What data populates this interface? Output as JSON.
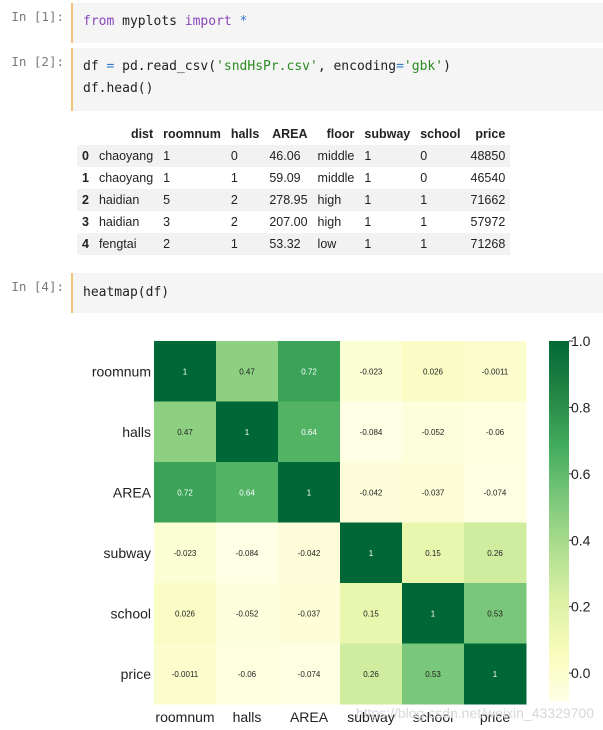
{
  "cells": [
    {
      "prompt": "In [1]:",
      "tokens": [
        {
          "t": "from",
          "c": "kw"
        },
        {
          "t": " myplots ",
          "c": ""
        },
        {
          "t": "import",
          "c": "kw"
        },
        {
          "t": " ",
          "c": ""
        },
        {
          "t": "*",
          "c": "op"
        }
      ]
    },
    {
      "prompt": "In [2]:",
      "tokens": [
        {
          "t": "df ",
          "c": ""
        },
        {
          "t": "=",
          "c": "op"
        },
        {
          "t": " pd.read_csv(",
          "c": ""
        },
        {
          "t": "'sndHsPr.csv'",
          "c": "str"
        },
        {
          "t": ", encoding",
          "c": ""
        },
        {
          "t": "=",
          "c": "op"
        },
        {
          "t": "'gbk'",
          "c": "str"
        },
        {
          "t": ")",
          "c": ""
        }
      ],
      "line2": "df.head()"
    },
    {
      "prompt": "In [4]:",
      "tokens": [
        {
          "t": "heatmap(df)",
          "c": ""
        }
      ]
    }
  ],
  "dataframe": {
    "columns": [
      "dist",
      "roomnum",
      "halls",
      "AREA",
      "floor",
      "subway",
      "school",
      "price"
    ],
    "rows": [
      {
        "index": "0",
        "values": [
          "chaoyang",
          "1",
          "0",
          "46.06",
          "middle",
          "1",
          "0",
          "48850"
        ]
      },
      {
        "index": "1",
        "values": [
          "chaoyang",
          "1",
          "1",
          "59.09",
          "middle",
          "1",
          "0",
          "46540"
        ]
      },
      {
        "index": "2",
        "values": [
          "haidian",
          "5",
          "2",
          "278.95",
          "high",
          "1",
          "1",
          "71662"
        ]
      },
      {
        "index": "3",
        "values": [
          "haidian",
          "3",
          "2",
          "207.00",
          "high",
          "1",
          "1",
          "57972"
        ]
      },
      {
        "index": "4",
        "values": [
          "fengtai",
          "2",
          "1",
          "53.32",
          "low",
          "1",
          "1",
          "71268"
        ]
      }
    ]
  },
  "chart_data": {
    "type": "heatmap",
    "x": [
      "roomnum",
      "halls",
      "AREA",
      "subway",
      "school",
      "price"
    ],
    "y": [
      "roomnum",
      "halls",
      "AREA",
      "subway",
      "school",
      "price"
    ],
    "values": [
      [
        1,
        0.47,
        0.72,
        -0.023,
        0.026,
        -0.0011
      ],
      [
        0.47,
        1,
        0.64,
        -0.084,
        -0.052,
        -0.06
      ],
      [
        0.72,
        0.64,
        1,
        -0.042,
        -0.037,
        -0.074
      ],
      [
        -0.023,
        -0.084,
        -0.042,
        1,
        0.15,
        0.26
      ],
      [
        0.026,
        -0.052,
        -0.037,
        0.15,
        1,
        0.53
      ],
      [
        -0.0011,
        -0.06,
        -0.074,
        0.26,
        0.53,
        1
      ]
    ],
    "labels": [
      [
        "1",
        "0.47",
        "0.72",
        "-0.023",
        "0.026",
        "-0.0011"
      ],
      [
        "0.47",
        "1",
        "0.64",
        "-0.084",
        "-0.052",
        "-0.06"
      ],
      [
        "0.72",
        "0.64",
        "1",
        "-0.042",
        "-0.037",
        "-0.074"
      ],
      [
        "-0.023",
        "-0.084",
        "-0.042",
        "1",
        "0.15",
        "0.26"
      ],
      [
        "0.026",
        "-0.052",
        "-0.037",
        "0.15",
        "1",
        "0.53"
      ],
      [
        "-0.0011",
        "-0.06",
        "-0.074",
        "0.26",
        "0.53",
        "1"
      ]
    ],
    "colorbar": {
      "range": [
        -0.084,
        1.0
      ],
      "ticks": [
        "1.0",
        "0.8",
        "0.6",
        "0.4",
        "0.2",
        "0.0"
      ],
      "tick_values": [
        1.0,
        0.8,
        0.6,
        0.4,
        0.2,
        0.0
      ]
    },
    "colormap": "YlGn",
    "annotations": [
      "https://blog.csdn.net/weixin_43329700"
    ]
  }
}
